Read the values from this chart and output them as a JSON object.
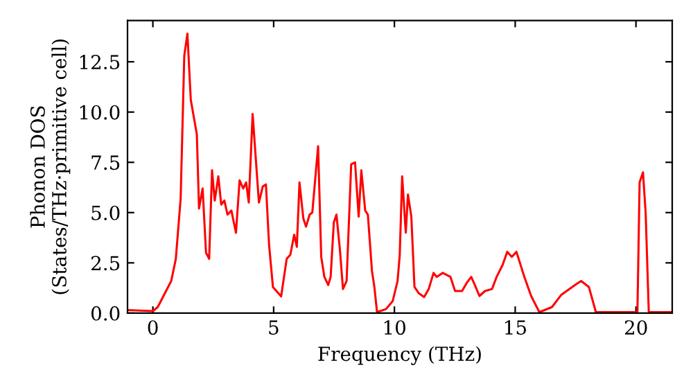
{
  "chart_data": {
    "type": "line",
    "xlabel": "Frequency (THz)",
    "ylabel": "Phonon DOS\n(States/THz·primitive cell)",
    "xlim": [
      -1.05,
      21.5
    ],
    "ylim": [
      0,
      14.55
    ],
    "xticks": [
      0,
      5,
      10,
      15,
      20
    ],
    "yticks": [
      {
        "value": 0,
        "label": "0.0"
      },
      2.5,
      {
        "value": 5,
        "label": "5.0"
      },
      7.5,
      {
        "value": 10,
        "label": "10.0"
      },
      12.5
    ],
    "grid": false,
    "marker": "none",
    "line_style": "solid",
    "series": [
      {
        "color": "#ff0000",
        "x": [
          -1.05,
          0,
          0.2,
          0.76,
          0.95,
          1.15,
          1.3,
          1.43,
          1.57,
          1.82,
          1.91,
          2.06,
          2.2,
          2.33,
          2.45,
          2.56,
          2.71,
          2.83,
          2.96,
          3.09,
          3.25,
          3.44,
          3.59,
          3.74,
          3.86,
          3.97,
          4.13,
          4.39,
          4.55,
          4.68,
          4.81,
          4.97,
          5.31,
          5.54,
          5.69,
          5.85,
          5.96,
          6.07,
          6.23,
          6.34,
          6.49,
          6.6,
          6.84,
          6.97,
          7.1,
          7.26,
          7.36,
          7.49,
          7.6,
          7.74,
          7.87,
          8.02,
          8.21,
          8.37,
          8.52,
          8.63,
          8.79,
          8.9,
          9.07,
          9.17,
          9.28,
          9.65,
          9.93,
          10.13,
          10.22,
          10.32,
          10.47,
          10.56,
          10.7,
          10.83,
          11.0,
          11.23,
          11.42,
          11.62,
          11.75,
          12.0,
          12.32,
          12.51,
          12.8,
          12.99,
          13.18,
          13.33,
          13.52,
          13.75,
          14.04,
          14.23,
          14.48,
          14.67,
          14.86,
          15.05,
          15.38,
          15.66,
          16.0,
          16.52,
          16.9,
          17.48,
          17.73,
          18.05,
          18.34,
          20.06,
          20.15,
          20.29,
          20.4,
          20.53,
          21.49
        ],
        "values": [
          0.15,
          0.1,
          0.3,
          1.6,
          2.7,
          5.7,
          12.8,
          13.9,
          10.6,
          8.9,
          5.2,
          6.2,
          3.0,
          2.7,
          7.1,
          5.6,
          6.8,
          5.4,
          5.6,
          4.9,
          5.1,
          4.0,
          6.6,
          6.2,
          6.5,
          5.5,
          9.9,
          5.5,
          6.3,
          6.4,
          3.4,
          1.3,
          0.83,
          2.7,
          2.9,
          3.9,
          3.3,
          6.5,
          4.7,
          4.3,
          4.9,
          5.0,
          8.3,
          2.8,
          1.8,
          1.4,
          1.8,
          4.5,
          4.9,
          3.2,
          1.2,
          1.6,
          7.4,
          7.5,
          4.8,
          7.1,
          5.1,
          4.9,
          2.1,
          1.3,
          0.05,
          0.2,
          0.6,
          1.6,
          2.9,
          6.8,
          4.0,
          5.9,
          4.8,
          1.3,
          1.0,
          0.8,
          1.2,
          2.0,
          1.8,
          2.0,
          1.8,
          1.1,
          1.1,
          1.5,
          1.8,
          1.4,
          0.85,
          1.1,
          1.2,
          1.8,
          2.4,
          3.05,
          2.8,
          3.05,
          1.8,
          0.85,
          0.05,
          0.3,
          0.9,
          1.4,
          1.6,
          1.3,
          0.05,
          0.05,
          6.5,
          7.0,
          5.0,
          0.05,
          0.05
        ]
      }
    ]
  }
}
